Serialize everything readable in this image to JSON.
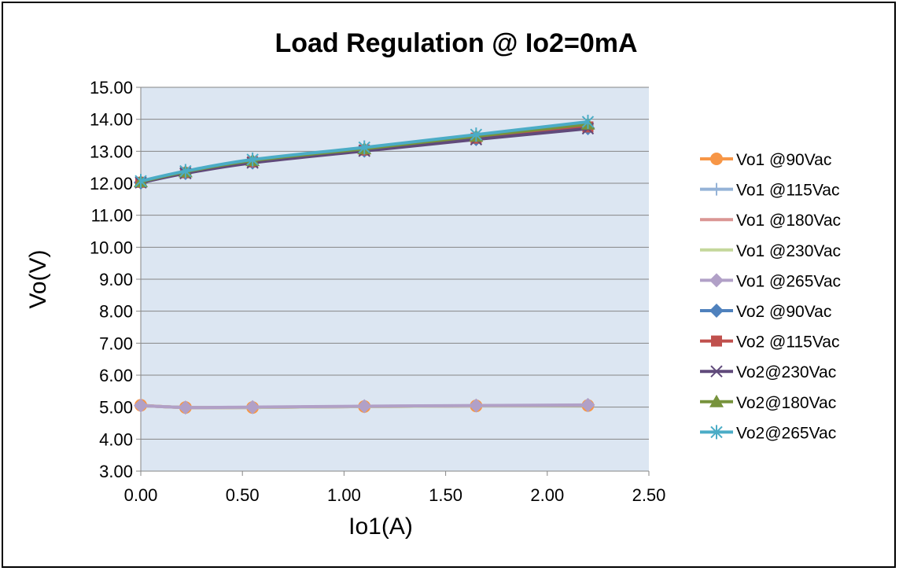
{
  "chart_data": {
    "type": "line",
    "title": "Load Regulation @ Io2=0mA",
    "xlabel": "Io1(A)",
    "ylabel": "Vo(V)",
    "xlim": [
      0,
      2.5
    ],
    "ylim": [
      3,
      15
    ],
    "x_ticks": [
      "0.00",
      "0.50",
      "1.00",
      "1.50",
      "2.00",
      "2.50"
    ],
    "y_ticks": [
      "15.00",
      "14.00",
      "13.00",
      "12.00",
      "11.00",
      "10.00",
      "9.00",
      "8.00",
      "7.00",
      "6.00",
      "5.00",
      "4.00",
      "3.00"
    ],
    "grid": "horizontal",
    "legend_position": "right",
    "plot_background": "#dce6f2",
    "x": [
      0.0,
      0.22,
      0.55,
      1.1,
      1.65,
      2.2
    ],
    "series": [
      {
        "name": "Vo1 @90Vac",
        "color": "#f79646",
        "marker": "circle",
        "values": [
          5.06,
          4.99,
          4.99,
          5.02,
          5.04,
          5.05
        ]
      },
      {
        "name": "Vo1 @115Vac",
        "color": "#95b3d7",
        "marker": "plus",
        "values": [
          5.05,
          4.99,
          4.99,
          5.02,
          5.04,
          5.05
        ]
      },
      {
        "name": "Vo1 @180Vac",
        "color": "#da9694",
        "marker": "none",
        "values": [
          5.05,
          4.99,
          4.99,
          5.02,
          5.04,
          5.06
        ]
      },
      {
        "name": "Vo1 @230Vac",
        "color": "#c4d79b",
        "marker": "none",
        "values": [
          5.05,
          4.99,
          4.99,
          5.02,
          5.04,
          5.06
        ]
      },
      {
        "name": "Vo1 @265Vac",
        "color": "#b1a0c7",
        "marker": "diamond",
        "values": [
          5.05,
          4.99,
          5.0,
          5.03,
          5.05,
          5.07
        ]
      },
      {
        "name": "Vo2 @90Vac",
        "color": "#4f81bd",
        "marker": "diamond",
        "values": [
          12.02,
          12.32,
          12.65,
          13.02,
          13.38,
          13.72
        ]
      },
      {
        "name": "Vo2 @115Vac",
        "color": "#c0504d",
        "marker": "square",
        "values": [
          12.03,
          12.33,
          12.67,
          13.04,
          13.41,
          13.76
        ]
      },
      {
        "name": "Vo2@230Vac",
        "color": "#604a7b",
        "marker": "x",
        "values": [
          12.02,
          12.31,
          12.64,
          13.01,
          13.37,
          13.71
        ]
      },
      {
        "name": "Vo2@180Vac",
        "color": "#77933c",
        "marker": "triangle",
        "values": [
          12.05,
          12.36,
          12.71,
          13.08,
          13.47,
          13.85
        ]
      },
      {
        "name": "Vo2@265Vac",
        "color": "#4bacc6",
        "marker": "asterisk",
        "values": [
          12.07,
          12.38,
          12.74,
          13.12,
          13.52,
          13.92
        ]
      }
    ]
  }
}
